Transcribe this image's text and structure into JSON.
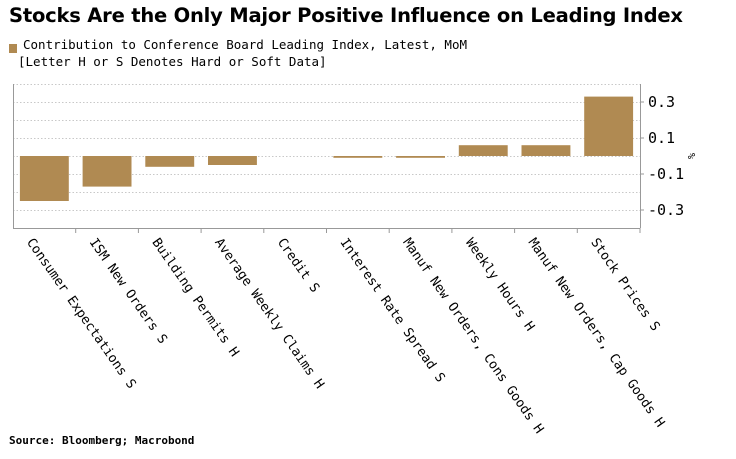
{
  "title": "Stocks Are the Only Major Positive Influence on Leading Index",
  "legend": {
    "line1": "Contribution to Conference Board Leading Index, Latest, MoM",
    "line2": "[Letter H or S Denotes Hard or Soft Data]"
  },
  "source": "Source: Bloomberg; Macrobond",
  "colors": {
    "bar": "#b08a52",
    "grid": "#c8c8c8",
    "axis": "#999999"
  },
  "chart_data": {
    "type": "bar",
    "title": "Stocks Are the Only Major Positive Influence on Leading Index",
    "xlabel": "",
    "ylabel": "%",
    "ylim": [
      -0.4,
      0.4
    ],
    "yticks": [
      -0.3,
      -0.1,
      0.1,
      0.3
    ],
    "ytick_labels": [
      "-0.3",
      "-0.1",
      "0.1",
      "0.3"
    ],
    "grid": true,
    "categories": [
      "Consumer Expectations S",
      "ISM New Orders S",
      "Building Permits H",
      "Average Weekly Claims H",
      "Credit S",
      "Interest Rate Spread S",
      "Manuf New Orders, Cons Goods H",
      "Weekly Hours H",
      "Manuf New Orders, Cap Goods H",
      "Stock Prices S"
    ],
    "values": [
      -0.25,
      -0.17,
      -0.06,
      -0.05,
      0.0,
      -0.01,
      -0.01,
      0.06,
      0.06,
      0.33
    ],
    "series": [
      {
        "name": "Contribution to Conference Board Leading Index, Latest, MoM",
        "values": [
          -0.25,
          -0.17,
          -0.06,
          -0.05,
          0.0,
          -0.01,
          -0.01,
          0.06,
          0.06,
          0.33
        ]
      }
    ]
  }
}
